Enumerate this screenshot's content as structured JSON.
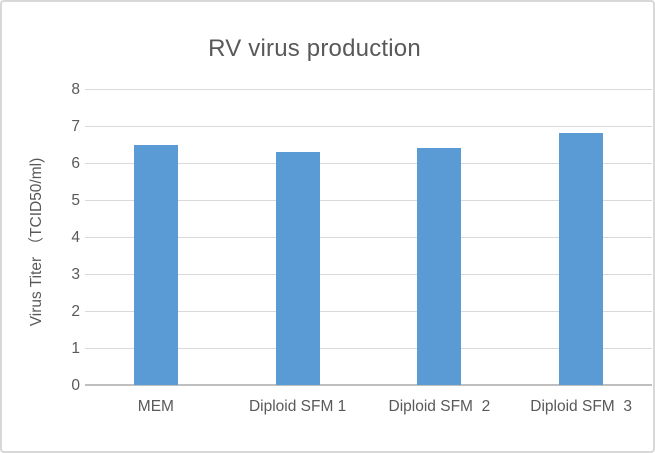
{
  "chart_data": {
    "type": "bar",
    "title": "RV virus production",
    "categories": [
      "MEM",
      "Diploid SFM 1",
      "Diploid SFM  2",
      "Diploid SFM  3"
    ],
    "values": [
      6.5,
      6.3,
      6.4,
      6.8
    ],
    "xlabel": "",
    "ylabel": "Virus Titer （TCID50/ml)",
    "ylim": [
      0,
      8
    ],
    "ytick_step": 1,
    "yticks": [
      0,
      1,
      2,
      3,
      4,
      5,
      6,
      7,
      8
    ],
    "grid": true,
    "legend": false,
    "colors": {
      "bar": "#5B9BD5",
      "gridline": "#D9D9D9",
      "axis_line": "#BFBFBF",
      "text": "#595959",
      "frame_border": "#D8D8D8",
      "background": "#FFFFFF"
    }
  }
}
